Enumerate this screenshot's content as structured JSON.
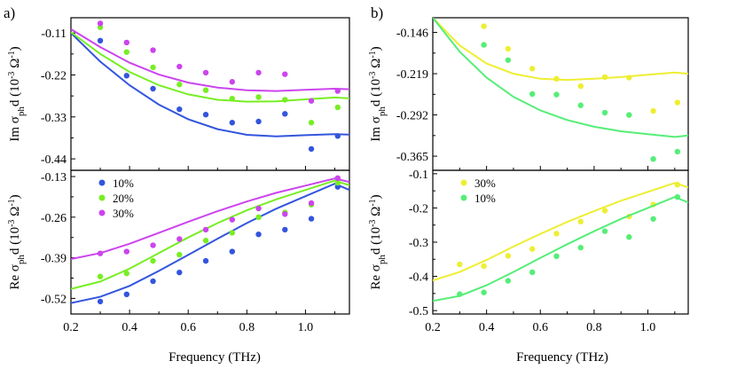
{
  "figure": {
    "panel_labels": [
      "a)",
      "b)"
    ],
    "ylabel_parts": {
      "im_prefix": "Im σ",
      "re_prefix": "Re σ",
      "sub": "ph",
      "mid": "d (10",
      "sup1": "-3",
      "omega": " Ω",
      "sup2": "-1",
      "close": ")"
    },
    "xlabel": "Frequency (THz)"
  },
  "chart_data": [
    {
      "id": "a_im",
      "type": "scatter",
      "title": "",
      "xlabel": "",
      "ylabel": "Im σphd (10-3 Ω-1)",
      "xlim": [
        0.2,
        1.15
      ],
      "ylim": [
        -0.47,
        -0.07
      ],
      "yticks": [
        -0.11,
        -0.22,
        -0.33,
        -0.44
      ],
      "ytick_labels": [
        "-0.11",
        "-0.22",
        "-0.33",
        "-0.44"
      ],
      "series": [
        {
          "name": "10%",
          "color": "#3355dd",
          "x": [
            0.3,
            0.39,
            0.48,
            0.57,
            0.66,
            0.75,
            0.84,
            0.93,
            1.02,
            1.11
          ],
          "points": [
            -0.13,
            -0.222,
            -0.256,
            -0.31,
            -0.324,
            -0.345,
            -0.342,
            -0.322,
            -0.414,
            -0.38
          ],
          "fit": [
            -0.11,
            -0.185,
            -0.247,
            -0.298,
            -0.336,
            -0.362,
            -0.377,
            -0.381,
            -0.378
          ]
        },
        {
          "name": "20%",
          "color": "#77ee22",
          "x": [
            0.3,
            0.39,
            0.48,
            0.57,
            0.66,
            0.75,
            0.84,
            0.93,
            1.02,
            1.11
          ],
          "points": [
            -0.095,
            -0.16,
            -0.2,
            -0.245,
            -0.26,
            -0.282,
            -0.278,
            -0.285,
            -0.345,
            -0.305
          ],
          "fit": [
            -0.108,
            -0.165,
            -0.212,
            -0.247,
            -0.271,
            -0.285,
            -0.29,
            -0.289,
            -0.284
          ]
        },
        {
          "name": "30%",
          "color": "#cc44ee",
          "x": [
            0.3,
            0.39,
            0.48,
            0.57,
            0.66,
            0.75,
            0.84,
            0.93,
            1.02,
            1.11
          ],
          "points": [
            -0.085,
            -0.135,
            -0.155,
            -0.198,
            -0.214,
            -0.238,
            -0.214,
            -0.218,
            -0.288,
            -0.262
          ],
          "fit": [
            -0.1,
            -0.147,
            -0.188,
            -0.219,
            -0.24,
            -0.253,
            -0.26,
            -0.262,
            -0.259
          ]
        }
      ]
    },
    {
      "id": "a_re",
      "type": "scatter",
      "title": "",
      "xlabel": "Frequency (THz)",
      "ylabel": "Re σphd (10-3 Ω-1)",
      "xlim": [
        0.2,
        1.15
      ],
      "ylim": [
        -0.57,
        -0.11
      ],
      "yticks": [
        -0.13,
        -0.26,
        -0.39,
        -0.52
      ],
      "ytick_labels": [
        "-0.13",
        "-0.26",
        "-0.39",
        "-0.52"
      ],
      "xticks": [
        0.2,
        0.4,
        0.6,
        0.8,
        1.0
      ],
      "xtick_labels": [
        "0.2",
        "0.4",
        "0.6",
        "0.8",
        "1.0"
      ],
      "legend": "top-left",
      "series": [
        {
          "name": "10%",
          "color": "#3355dd",
          "x": [
            0.3,
            0.39,
            0.48,
            0.57,
            0.66,
            0.75,
            0.84,
            0.93,
            1.02,
            1.11
          ],
          "points": [
            -0.53,
            -0.507,
            -0.465,
            -0.437,
            -0.4,
            -0.37,
            -0.315,
            -0.3,
            -0.265,
            -0.163
          ],
          "fit": [
            -0.535,
            -0.515,
            -0.48,
            -0.432,
            -0.381,
            -0.329,
            -0.279,
            -0.233,
            -0.193
          ]
        },
        {
          "name": "20%",
          "color": "#77ee22",
          "x": [
            0.3,
            0.39,
            0.48,
            0.57,
            0.66,
            0.75,
            0.84,
            0.93,
            1.02,
            1.11
          ],
          "points": [
            -0.45,
            -0.44,
            -0.4,
            -0.38,
            -0.335,
            -0.31,
            -0.26,
            -0.245,
            -0.22,
            -0.15
          ],
          "fit": [
            -0.49,
            -0.466,
            -0.425,
            -0.375,
            -0.325,
            -0.279,
            -0.238,
            -0.203,
            -0.173
          ]
        },
        {
          "name": "30%",
          "color": "#cc44ee",
          "x": [
            0.3,
            0.39,
            0.48,
            0.57,
            0.66,
            0.75,
            0.84,
            0.93,
            1.02,
            1.11
          ],
          "points": [
            -0.376,
            -0.37,
            -0.35,
            -0.33,
            -0.3,
            -0.268,
            -0.232,
            -0.25,
            -0.215,
            -0.135
          ],
          "fit": [
            -0.394,
            -0.375,
            -0.345,
            -0.31,
            -0.275,
            -0.241,
            -0.21,
            -0.182,
            -0.159
          ]
        }
      ]
    },
    {
      "id": "b_im",
      "type": "scatter",
      "title": "",
      "xlabel": "",
      "ylabel": "Im σphd (10-3 Ω-1)",
      "xlim": [
        0.2,
        1.15
      ],
      "ylim": [
        -0.39,
        -0.12
      ],
      "yticks": [
        -0.146,
        -0.219,
        -0.292,
        -0.365
      ],
      "ytick_labels": [
        "-0.146",
        "-0.219",
        "-0.292",
        "-0.365"
      ],
      "series": [
        {
          "name": "30%",
          "color": "#eeee33",
          "x": [
            0.39,
            0.48,
            0.57,
            0.66,
            0.75,
            0.84,
            0.93,
            1.02,
            1.11
          ],
          "points": [
            -0.135,
            -0.175,
            -0.21,
            -0.228,
            -0.241,
            -0.225,
            -0.226,
            -0.285,
            -0.27
          ],
          "fit": [
            -0.12,
            -0.169,
            -0.201,
            -0.219,
            -0.228,
            -0.23,
            -0.228,
            -0.225,
            -0.221
          ]
        },
        {
          "name": "10%",
          "color": "#55ee77",
          "x": [
            0.39,
            0.48,
            0.57,
            0.66,
            0.75,
            0.84,
            0.93,
            1.02,
            1.11
          ],
          "points": [
            -0.168,
            -0.195,
            -0.255,
            -0.256,
            -0.275,
            -0.288,
            -0.292,
            -0.37,
            -0.357
          ],
          "fit": [
            -0.12,
            -0.18,
            -0.226,
            -0.26,
            -0.284,
            -0.301,
            -0.313,
            -0.321,
            -0.326
          ]
        }
      ]
    },
    {
      "id": "b_re",
      "type": "scatter",
      "title": "",
      "xlabel": "Frequency (THz)",
      "ylabel": "Re σphd (10-3 Ω-1)",
      "xlim": [
        0.2,
        1.15
      ],
      "ylim": [
        -0.51,
        -0.09
      ],
      "yticks": [
        -0.1,
        -0.2,
        -0.3,
        -0.4,
        -0.5
      ],
      "ytick_labels": [
        "-0.1",
        "-0.2",
        "-0.3",
        "-0.4",
        "-0.5"
      ],
      "xticks": [
        0.2,
        0.4,
        0.6,
        0.8,
        1.0
      ],
      "xtick_labels": [
        "0.2",
        "0.4",
        "0.6",
        "0.8",
        "1.0"
      ],
      "legend": "top-left",
      "series": [
        {
          "name": "30%",
          "color": "#eeee33",
          "x": [
            0.3,
            0.39,
            0.48,
            0.57,
            0.66,
            0.75,
            0.84,
            0.93,
            1.02,
            1.11
          ],
          "points": [
            -0.365,
            -0.37,
            -0.34,
            -0.32,
            -0.275,
            -0.24,
            -0.208,
            -0.225,
            -0.19,
            -0.132
          ],
          "fit": [
            -0.412,
            -0.387,
            -0.352,
            -0.313,
            -0.276,
            -0.241,
            -0.209,
            -0.179,
            -0.153
          ]
        },
        {
          "name": "10%",
          "color": "#55ee77",
          "x": [
            0.3,
            0.39,
            0.48,
            0.57,
            0.66,
            0.75,
            0.84,
            0.93,
            1.02,
            1.11
          ],
          "points": [
            -0.452,
            -0.447,
            -0.413,
            -0.388,
            -0.341,
            -0.316,
            -0.268,
            -0.285,
            -0.232,
            -0.168
          ],
          "fit": [
            -0.472,
            -0.457,
            -0.426,
            -0.387,
            -0.346,
            -0.306,
            -0.268,
            -0.232,
            -0.2
          ]
        }
      ]
    }
  ]
}
